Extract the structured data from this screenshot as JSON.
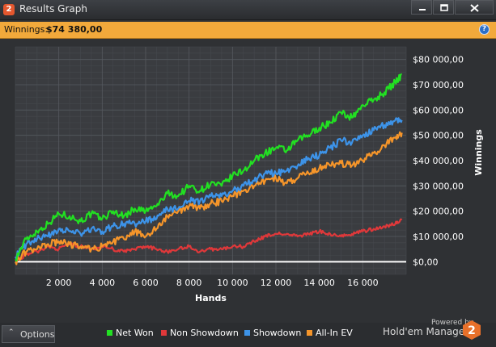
{
  "window": {
    "title": "Results Graph",
    "app_badge": "2"
  },
  "infobar": {
    "label": "Winnings:",
    "value": "$74 380,00"
  },
  "icons": {
    "app": "hem-logo-icon",
    "minimize": "minimize-icon",
    "maximize": "maximize-icon",
    "close": "close-icon",
    "help": "help-icon",
    "options": "chevron-up-icon"
  },
  "footer": {
    "options_label": "Options",
    "powered_by": "Powered by",
    "brand": "Hold'em Manager",
    "brand_badge": "2"
  },
  "colors": {
    "net_won": "#22e022",
    "non_showdown": "#e0383a",
    "showdown": "#3d93e8",
    "allin_ev": "#f5952a",
    "accent": "#f2a93b"
  },
  "chart_data": {
    "type": "line",
    "xlabel": "Hands",
    "ylabel": "Winnings",
    "xlim": [
      0,
      18000
    ],
    "ylim": [
      -5000,
      85000
    ],
    "x_ticks": [
      "2 000",
      "4 000",
      "6 000",
      "8 000",
      "10 000",
      "12 000",
      "14 000",
      "16 000"
    ],
    "x_tick_values": [
      2000,
      4000,
      6000,
      8000,
      10000,
      12000,
      14000,
      16000
    ],
    "y_ticks": [
      "$80 000,00",
      "$70 000,00",
      "$60 000,00",
      "$50 000,00",
      "$40 000,00",
      "$30 000,00",
      "$20 000,00",
      "$10 000,00",
      "$0,00"
    ],
    "y_tick_values": [
      80000,
      70000,
      60000,
      50000,
      40000,
      30000,
      20000,
      10000,
      0
    ],
    "x": [
      0,
      500,
      1000,
      1500,
      2000,
      2500,
      3000,
      3500,
      4000,
      4500,
      5000,
      5500,
      6000,
      6500,
      7000,
      7500,
      8000,
      8500,
      9000,
      9500,
      10000,
      10500,
      11000,
      11500,
      12000,
      12500,
      13000,
      13500,
      14000,
      14500,
      15000,
      15500,
      16000,
      16500,
      17000,
      17500,
      17800
    ],
    "series": [
      {
        "name": "Net Won",
        "values": [
          1000,
          9000,
          12000,
          15000,
          19000,
          18000,
          16000,
          19000,
          17000,
          20000,
          18000,
          21000,
          20000,
          22000,
          27000,
          26000,
          30000,
          28000,
          31000,
          30000,
          34000,
          36000,
          40000,
          43000,
          45000,
          44000,
          48000,
          50000,
          53000,
          55000,
          59000,
          57000,
          62000,
          64000,
          67000,
          71000,
          74000
        ]
      },
      {
        "name": "Non Showdown",
        "values": [
          0,
          3000,
          4000,
          6000,
          5000,
          7000,
          6000,
          5000,
          6000,
          5000,
          4000,
          5000,
          6000,
          5000,
          4000,
          5000,
          6000,
          4000,
          5000,
          5000,
          6000,
          6000,
          8000,
          10000,
          11000,
          11000,
          10000,
          11000,
          12000,
          11000,
          10000,
          11000,
          12000,
          13000,
          14000,
          15000,
          17000
        ]
      },
      {
        "name": "Showdown",
        "values": [
          2000,
          7000,
          9000,
          10000,
          13000,
          12000,
          11000,
          13000,
          12000,
          14000,
          15000,
          15000,
          16000,
          17000,
          21000,
          21000,
          24000,
          24000,
          26000,
          26000,
          28000,
          30000,
          32000,
          35000,
          35000,
          36000,
          38000,
          41000,
          42000,
          45000,
          48000,
          47000,
          50000,
          52000,
          54000,
          56000,
          56000
        ]
      },
      {
        "name": "All-In EV",
        "values": [
          0,
          4000,
          5000,
          7000,
          8000,
          7000,
          6000,
          5000,
          6000,
          8000,
          9000,
          12000,
          10000,
          13000,
          18000,
          20000,
          22000,
          21000,
          23000,
          24000,
          26000,
          28000,
          30000,
          32000,
          33000,
          31000,
          33000,
          35000,
          37000,
          38000,
          39000,
          38000,
          40000,
          43000,
          46000,
          49000,
          51000
        ]
      }
    ],
    "legend_position": "bottom",
    "grid": true
  }
}
